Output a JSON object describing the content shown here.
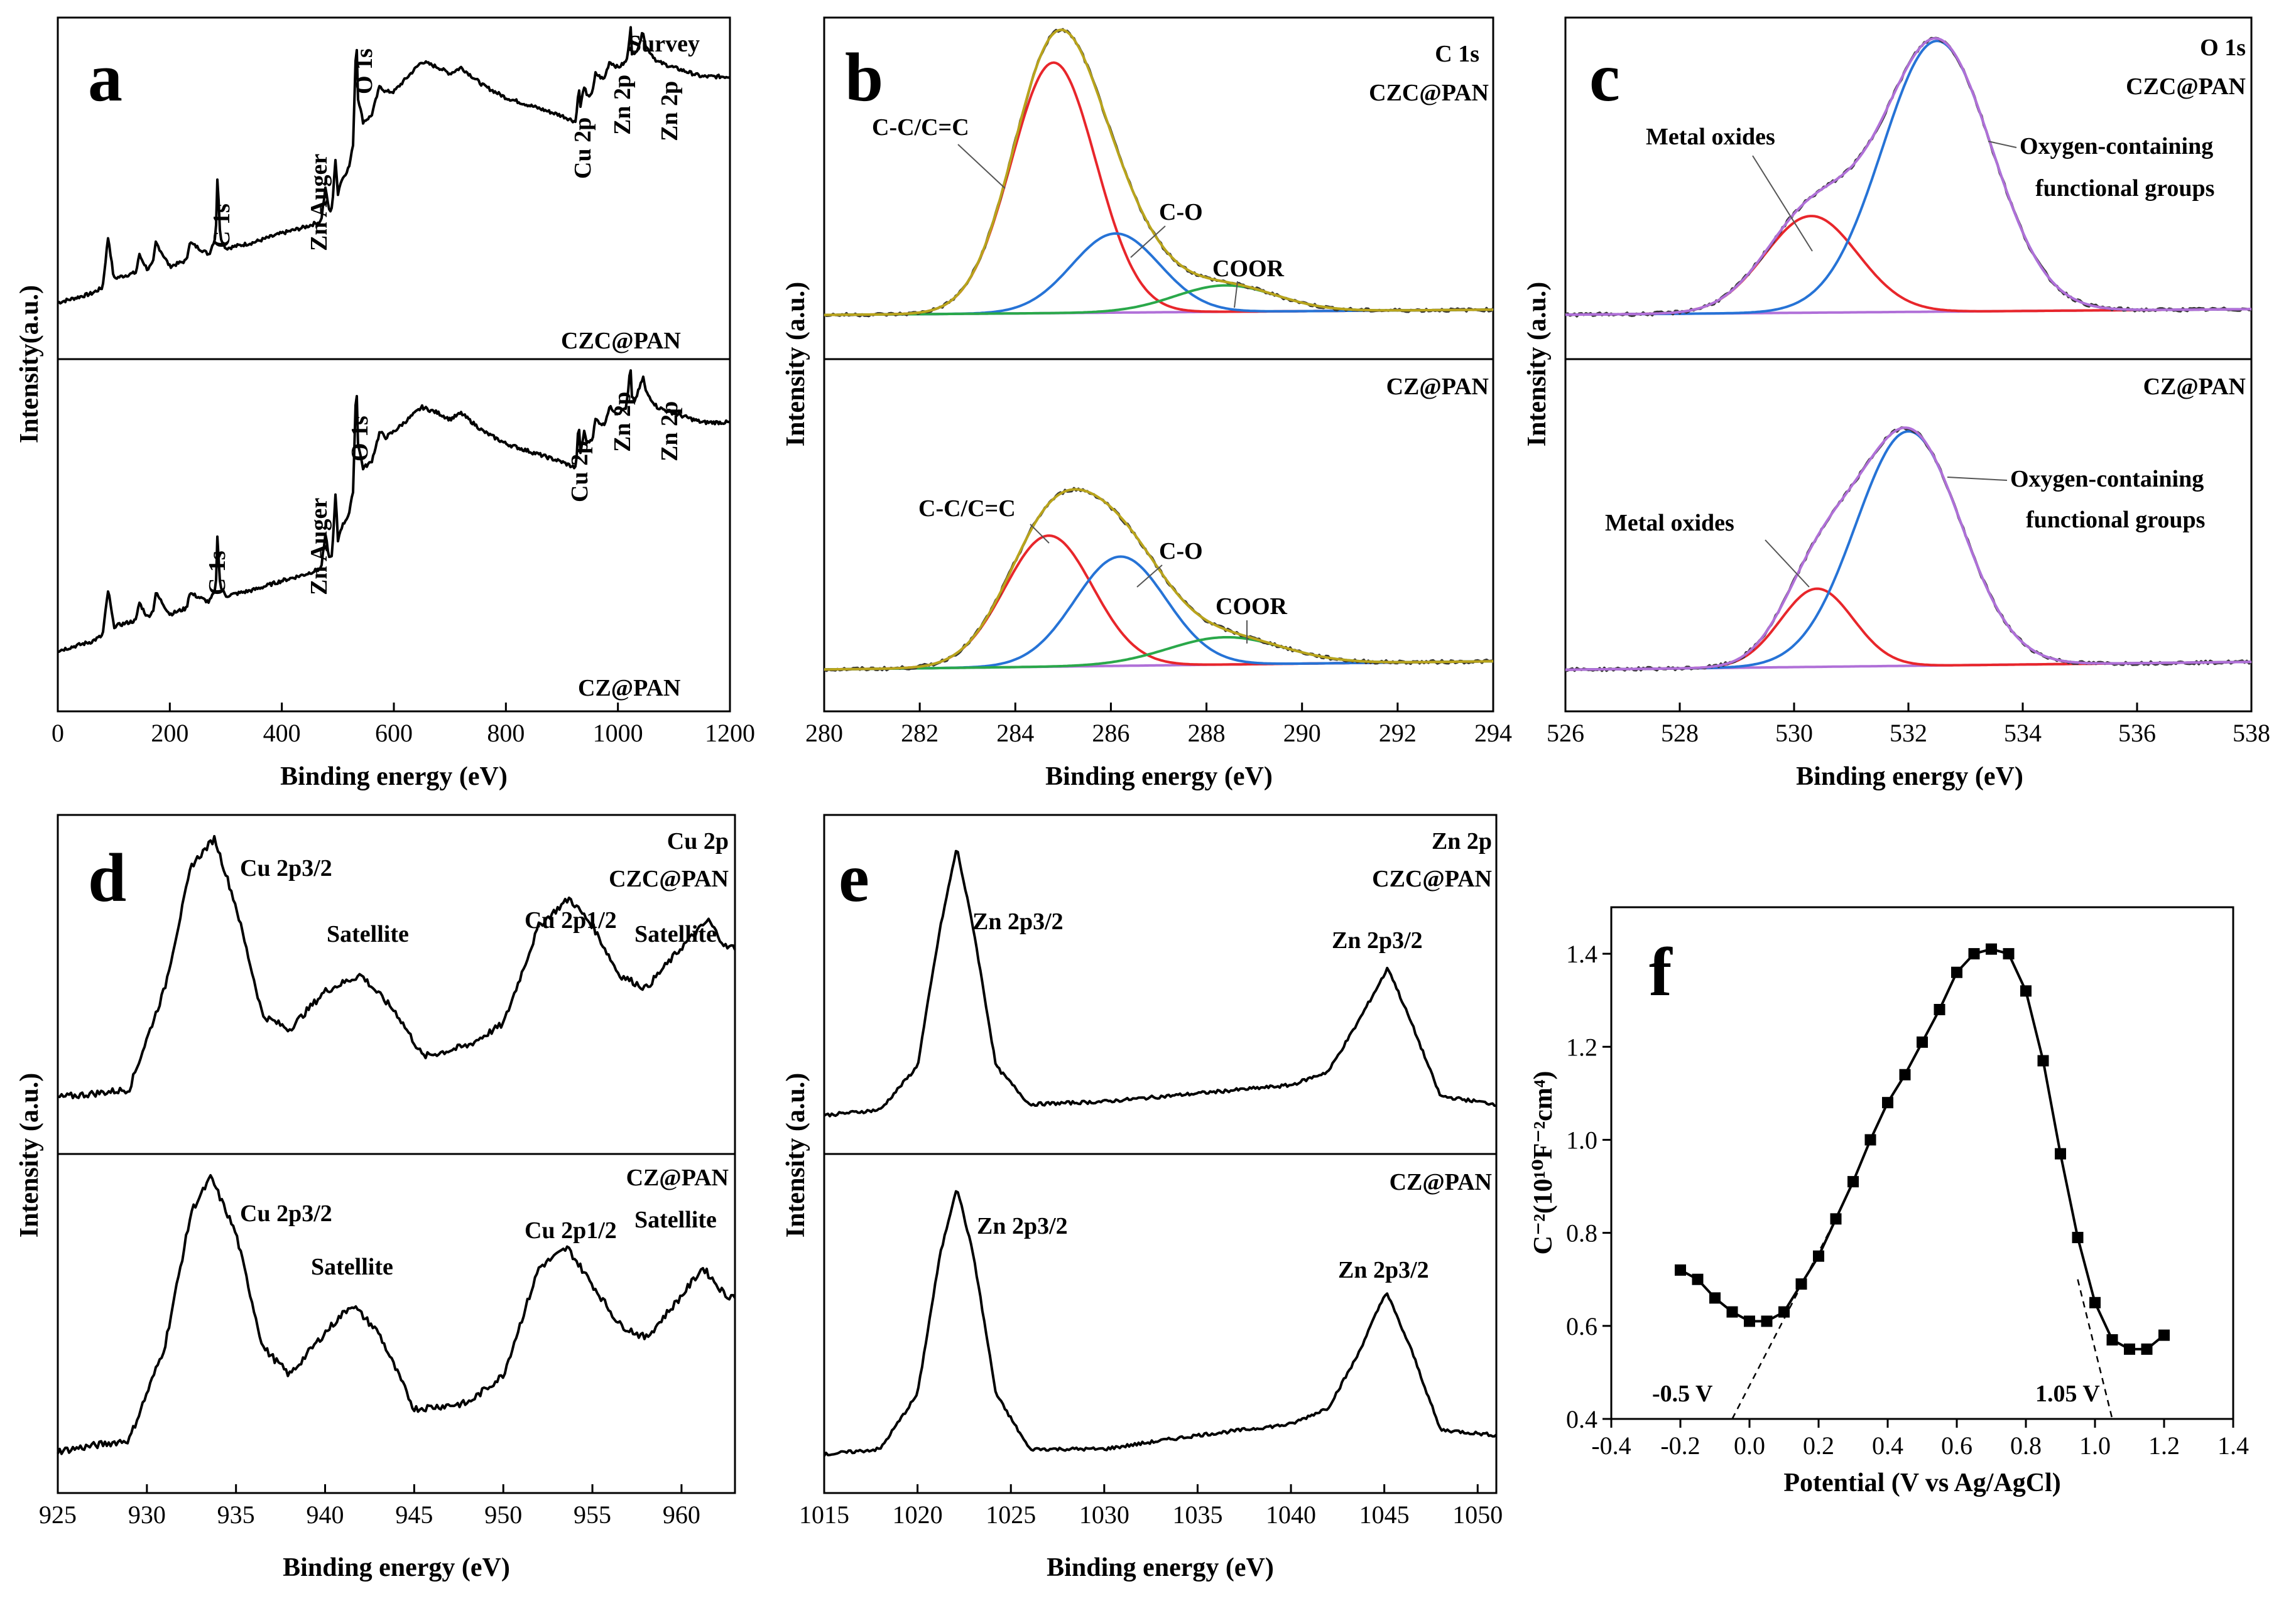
{
  "colors": {
    "black": "#000000",
    "red": "#e8262b",
    "blue": "#2673d6",
    "green": "#2aa84a",
    "olive": "#b9a41c",
    "violet": "#b070d8",
    "gray": "#7a7a7a"
  },
  "chart_data": [
    {
      "id": "a",
      "type": "line",
      "letter": "a",
      "title": "Survey",
      "xlabel": "Binding energy (eV)",
      "ylabel": "Intensity(a.u.)",
      "xlim": [
        0,
        1200
      ],
      "xticks": [
        0,
        200,
        400,
        600,
        800,
        1000,
        1200
      ],
      "xtick_labels": [
        "0",
        "200",
        "400",
        "600",
        "800",
        "1000",
        "1200"
      ],
      "subplots": [
        {
          "name": "CZC@PAN",
          "series": [
            {
              "name": "CZC@PAN",
              "x": [
                0,
                60,
                80,
                90,
                100,
                140,
                145,
                160,
                170,
                175,
                200,
                230,
                235,
                270,
                282,
                285,
                290,
                300,
                350,
                400,
                440,
                470,
                478,
                485,
                490,
                496,
                500,
                505,
                520,
                527,
                530,
                533,
                536,
                545,
                560,
                575,
                585,
                600,
                650,
                680,
                700,
                720,
                760,
                800,
                850,
                900,
                925,
                930,
                933,
                940,
                945,
                955,
                960,
                975,
                985,
                1000,
                1015,
                1020,
                1022,
                1025,
                1030,
                1040,
                1045,
                1050,
                1070,
                1100,
                1150,
                1200
              ],
              "y": [
                0.1,
                0.13,
                0.15,
                0.32,
                0.18,
                0.2,
                0.26,
                0.21,
                0.23,
                0.3,
                0.22,
                0.24,
                0.3,
                0.26,
                0.32,
                0.52,
                0.32,
                0.28,
                0.3,
                0.33,
                0.35,
                0.37,
                0.48,
                0.4,
                0.42,
                0.58,
                0.46,
                0.5,
                0.55,
                0.62,
                0.8,
                1.0,
                0.78,
                0.7,
                0.72,
                0.82,
                0.8,
                0.8,
                0.9,
                0.88,
                0.86,
                0.88,
                0.82,
                0.78,
                0.75,
                0.72,
                0.7,
                0.82,
                0.75,
                0.82,
                0.78,
                0.8,
                0.86,
                0.84,
                0.9,
                0.88,
                0.9,
                0.95,
                1.05,
                0.93,
                0.92,
                0.97,
                1.0,
                0.95,
                0.9,
                0.88,
                0.85,
                0.85
              ]
            }
          ],
          "peaks": [
            "C 1s",
            "Zn Auger",
            "O 1s",
            "Cu 2p",
            "Zn 2p",
            "Zn 2p"
          ]
        },
        {
          "name": "CZ@PAN",
          "series": [
            {
              "name": "CZ@PAN",
              "x": [
                0,
                60,
                80,
                90,
                100,
                140,
                145,
                160,
                170,
                175,
                200,
                230,
                235,
                270,
                282,
                285,
                290,
                300,
                350,
                400,
                440,
                470,
                478,
                485,
                490,
                496,
                500,
                505,
                520,
                527,
                530,
                533,
                536,
                545,
                560,
                575,
                585,
                600,
                650,
                680,
                700,
                720,
                760,
                800,
                850,
                900,
                925,
                930,
                933,
                940,
                945,
                955,
                960,
                975,
                985,
                1000,
                1015,
                1020,
                1022,
                1025,
                1030,
                1040,
                1045,
                1050,
                1070,
                1100,
                1150,
                1200
              ],
              "y": [
                0.1,
                0.13,
                0.15,
                0.3,
                0.18,
                0.2,
                0.26,
                0.21,
                0.23,
                0.29,
                0.22,
                0.24,
                0.29,
                0.26,
                0.3,
                0.48,
                0.31,
                0.28,
                0.3,
                0.33,
                0.35,
                0.37,
                0.48,
                0.4,
                0.42,
                0.62,
                0.46,
                0.5,
                0.55,
                0.62,
                0.8,
                1.0,
                0.78,
                0.7,
                0.72,
                0.82,
                0.8,
                0.82,
                0.9,
                0.88,
                0.86,
                0.88,
                0.82,
                0.78,
                0.75,
                0.72,
                0.7,
                0.85,
                0.75,
                0.82,
                0.78,
                0.8,
                0.86,
                0.84,
                0.9,
                0.88,
                0.9,
                0.98,
                1.05,
                0.93,
                0.92,
                0.97,
                1.0,
                0.95,
                0.9,
                0.88,
                0.85,
                0.85
              ]
            }
          ],
          "peaks": [
            "C 1s",
            "Zn Auger",
            "O 1s",
            "Cu 2p",
            "Zn 2p",
            "Zn 2p"
          ]
        }
      ]
    },
    {
      "id": "b",
      "type": "line",
      "letter": "b",
      "title": "C 1s",
      "xlabel": "Binding energy (eV)",
      "ylabel": "Intensity (a.u.)",
      "xlim": [
        280,
        294
      ],
      "xticks": [
        280,
        282,
        284,
        286,
        288,
        290,
        292,
        294
      ],
      "xtick_labels": [
        "280",
        "282",
        "284",
        "286",
        "288",
        "290",
        "292",
        "294"
      ],
      "subplots": [
        {
          "name": "CZC@PAN",
          "components": [
            {
              "name": "C-C/C=C",
              "center": 284.8,
              "height": 0.95,
              "width": 1.25,
              "color": "red"
            },
            {
              "name": "C-O",
              "center": 286.1,
              "height": 0.3,
              "width": 1.3,
              "color": "blue"
            },
            {
              "name": "COOR",
              "center": 288.4,
              "height": 0.1,
              "width": 1.5,
              "color": "green"
            }
          ],
          "baseline": [
            0.02,
            0.04
          ],
          "labels": [
            "C-C/C=C",
            "C-O",
            "COOR"
          ]
        },
        {
          "name": "CZ@PAN",
          "components": [
            {
              "name": "C-C/C=C",
              "center": 284.7,
              "height": 0.48,
              "width": 1.3,
              "color": "red"
            },
            {
              "name": "C-O",
              "center": 286.2,
              "height": 0.4,
              "width": 1.35,
              "color": "blue"
            },
            {
              "name": "COOR",
              "center": 288.4,
              "height": 0.1,
              "width": 1.7,
              "color": "green"
            }
          ],
          "baseline": [
            0.02,
            0.05
          ],
          "labels": [
            "C-C/C=C",
            "C-O",
            "COOR"
          ]
        }
      ]
    },
    {
      "id": "c",
      "type": "line",
      "letter": "c",
      "title": "O 1s",
      "xlabel": "Binding energy (eV)",
      "ylabel": "Intensity (a.u.)",
      "xlim": [
        526,
        538
      ],
      "xticks": [
        526,
        528,
        530,
        532,
        534,
        536,
        538
      ],
      "xtick_labels": [
        "526",
        "528",
        "530",
        "532",
        "534",
        "536",
        "538"
      ],
      "subplots": [
        {
          "name": "CZC@PAN",
          "components": [
            {
              "name": "Metal oxides",
              "center": 530.3,
              "height": 0.35,
              "width": 1.15,
              "color": "red"
            },
            {
              "name": "Oxygen-containing functional groups",
              "center": 532.5,
              "height": 0.98,
              "width": 1.35,
              "color": "blue"
            }
          ],
          "baseline": [
            0.02,
            0.04
          ],
          "labels": [
            "Metal oxides",
            "Oxygen-containing",
            "functional groups"
          ]
        },
        {
          "name": "CZ@PAN",
          "components": [
            {
              "name": "Metal oxides",
              "center": 530.4,
              "height": 0.3,
              "width": 0.9,
              "color": "red"
            },
            {
              "name": "Oxygen-containing functional groups",
              "center": 532.0,
              "height": 0.9,
              "width": 1.3,
              "color": "blue"
            }
          ],
          "baseline": [
            0.02,
            0.05
          ],
          "labels": [
            "Metal oxides",
            "Oxygen-containing",
            "functional groups"
          ]
        }
      ]
    },
    {
      "id": "d",
      "type": "line",
      "letter": "d",
      "title": "Cu 2p",
      "xlabel": "Binding energy (eV)",
      "ylabel": "Intensity (a.u.)",
      "xlim": [
        925,
        963
      ],
      "xticks": [
        925,
        930,
        935,
        940,
        945,
        950,
        955,
        960
      ],
      "xtick_labels": [
        "925",
        "930",
        "935",
        "940",
        "945",
        "950",
        "955",
        "960"
      ],
      "subplots": [
        {
          "name": "CZC@PAN",
          "series": [
            {
              "name": "CZC@PAN",
              "x": [
                925,
                929,
                931,
                932.5,
                933.8,
                935,
                936.5,
                938,
                940,
                942,
                944,
                945.5,
                948,
                950,
                952,
                953.7,
                955,
                956.5,
                958,
                960,
                961.5,
                962.5
              ],
              "y": [
                0.05,
                0.08,
                0.45,
                0.9,
                1.0,
                0.75,
                0.35,
                0.3,
                0.44,
                0.5,
                0.36,
                0.2,
                0.24,
                0.32,
                0.68,
                0.78,
                0.68,
                0.5,
                0.45,
                0.6,
                0.7,
                0.6
              ]
            }
          ],
          "labels": [
            "Cu 2p3/2",
            "Satellite",
            "Cu 2p1/2",
            "Satellite"
          ]
        },
        {
          "name": "CZ@PAN",
          "series": [
            {
              "name": "CZ@PAN",
              "x": [
                925,
                929,
                931,
                932.5,
                933.6,
                935,
                936.5,
                938,
                940,
                941.5,
                943,
                945,
                948,
                950,
                952,
                953.6,
                955,
                956.5,
                958,
                960,
                961.2,
                962.5
              ],
              "y": [
                0.03,
                0.07,
                0.4,
                0.88,
                1.0,
                0.8,
                0.4,
                0.3,
                0.45,
                0.55,
                0.45,
                0.18,
                0.2,
                0.3,
                0.68,
                0.75,
                0.62,
                0.48,
                0.43,
                0.58,
                0.68,
                0.58
              ]
            }
          ],
          "labels": [
            "Cu 2p3/2",
            "Satellite",
            "Cu 2p1/2",
            "Satellite"
          ]
        }
      ]
    },
    {
      "id": "e",
      "type": "line",
      "letter": "e",
      "title": "Zn 2p",
      "xlabel": "Binding energy (eV)",
      "ylabel": "Intensity (a.u.)",
      "xlim": [
        1015,
        1051
      ],
      "xticks": [
        1015,
        1020,
        1025,
        1030,
        1035,
        1040,
        1045,
        1050
      ],
      "xtick_labels": [
        "1015",
        "1020",
        "1025",
        "1030",
        "1035",
        "1040",
        "1045",
        "1050"
      ],
      "subplots": [
        {
          "name": "CZC@PAN",
          "series": [
            {
              "name": "CZC@PAN",
              "x": [
                1015,
                1018,
                1020,
                1021.2,
                1022.1,
                1023,
                1024.2,
                1026,
                1030,
                1035,
                1040,
                1042,
                1043.5,
                1045.2,
                1046.5,
                1048,
                1051
              ],
              "y": [
                0.02,
                0.04,
                0.2,
                0.7,
                1.0,
                0.7,
                0.2,
                0.06,
                0.07,
                0.1,
                0.13,
                0.18,
                0.35,
                0.56,
                0.35,
                0.09,
                0.06
              ]
            }
          ],
          "labels": [
            "Zn 2p3/2",
            "Zn 2p3/2"
          ]
        },
        {
          "name": "CZ@PAN",
          "series": [
            {
              "name": "CZ@PAN",
              "x": [
                1015,
                1018,
                1020,
                1021.2,
                1022.1,
                1023,
                1024.2,
                1026,
                1030,
                1035,
                1040,
                1042,
                1043.5,
                1045.1,
                1046.5,
                1048,
                1051
              ],
              "y": [
                0.03,
                0.05,
                0.25,
                0.75,
                1.0,
                0.75,
                0.25,
                0.05,
                0.05,
                0.1,
                0.14,
                0.2,
                0.38,
                0.62,
                0.4,
                0.12,
                0.1
              ]
            }
          ],
          "labels": [
            "Zn 2p3/2",
            "Zn 2p3/2"
          ]
        }
      ]
    },
    {
      "id": "f",
      "type": "scatter",
      "letter": "f",
      "xlabel": "Potential (V vs Ag/AgCl)",
      "ylabel": "C⁻²(10¹⁰F⁻²cm⁴)",
      "xlim": [
        -0.4,
        1.4
      ],
      "ylim": [
        0.4,
        1.5
      ],
      "xticks": [
        -0.4,
        -0.2,
        0.0,
        0.2,
        0.4,
        0.6,
        0.8,
        1.0,
        1.2,
        1.4
      ],
      "xtick_labels": [
        "-0.4",
        "-0.2",
        "0.0",
        "0.2",
        "0.4",
        "0.6",
        "0.8",
        "1.0",
        "1.2",
        "1.4"
      ],
      "yticks": [
        0.4,
        0.6,
        0.8,
        1.0,
        1.2,
        1.4
      ],
      "ytick_labels": [
        "0.4",
        "0.6",
        "0.8",
        "1.0",
        "1.2",
        "1.4"
      ],
      "series": [
        {
          "name": "C-2",
          "x": [
            -0.2,
            -0.15,
            -0.1,
            -0.05,
            0.0,
            0.05,
            0.1,
            0.15,
            0.2,
            0.25,
            0.3,
            0.35,
            0.4,
            0.45,
            0.5,
            0.55,
            0.6,
            0.65,
            0.7,
            0.75,
            0.8,
            0.85,
            0.9,
            0.95,
            1.0,
            1.05,
            1.1,
            1.15,
            1.2
          ],
          "y": [
            0.72,
            0.7,
            0.66,
            0.63,
            0.61,
            0.61,
            0.63,
            0.69,
            0.75,
            0.83,
            0.91,
            1.0,
            1.08,
            1.14,
            1.21,
            1.28,
            1.36,
            1.4,
            1.41,
            1.4,
            1.32,
            1.17,
            0.97,
            0.79,
            0.65,
            0.57,
            0.55,
            0.55,
            0.58
          ]
        }
      ],
      "fit_lines": [
        {
          "from": [
            -0.05,
            0.4
          ],
          "to": [
            0.25,
            0.83
          ]
        },
        {
          "from": [
            0.95,
            0.7
          ],
          "to": [
            1.05,
            0.4
          ]
        }
      ],
      "annotations": [
        "-0.5 V",
        "1.05 V"
      ]
    }
  ]
}
